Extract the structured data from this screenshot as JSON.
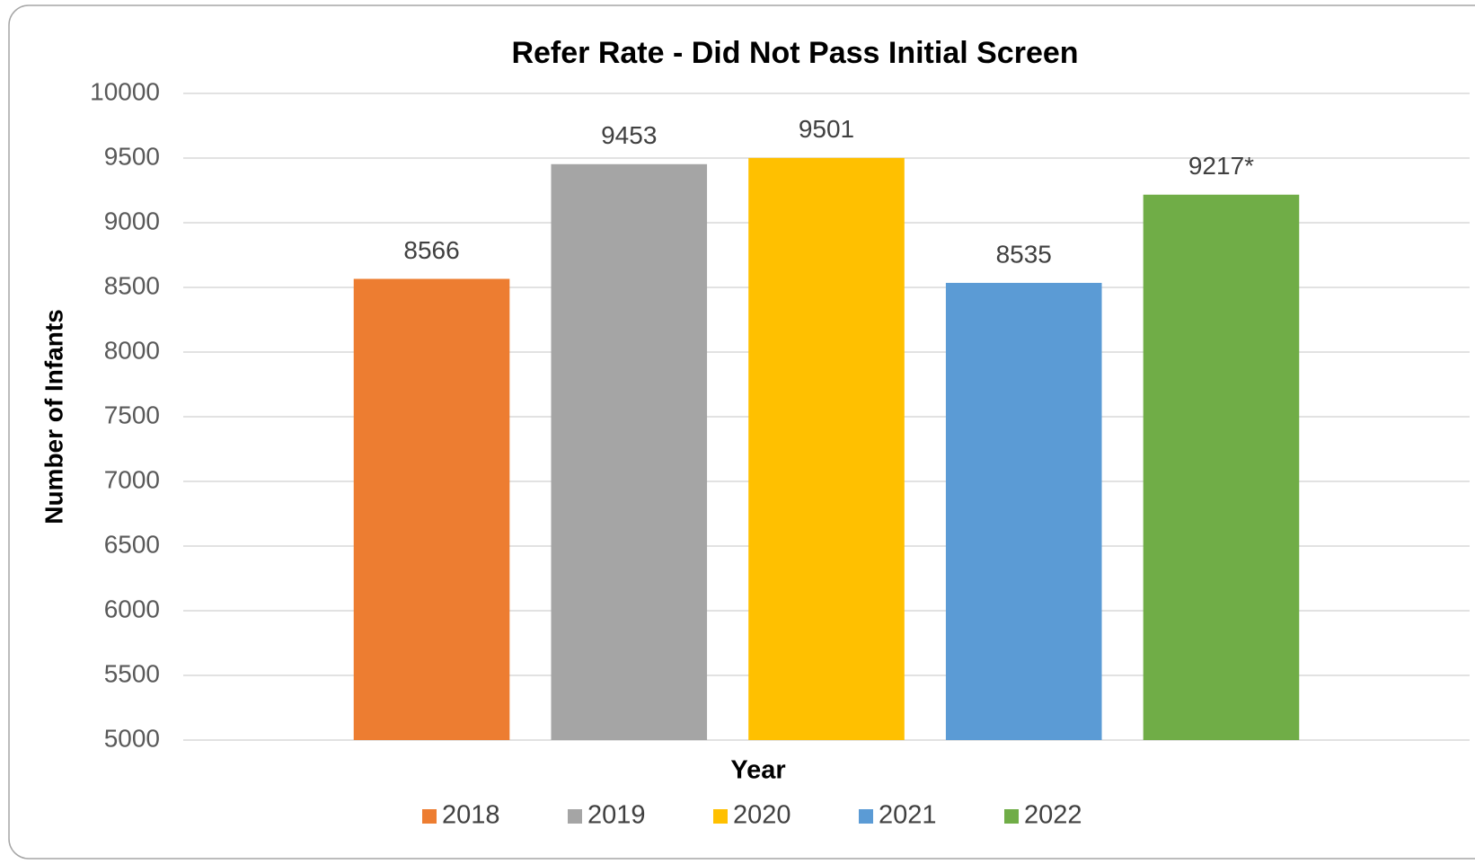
{
  "chart_data": {
    "type": "bar",
    "title": "Refer Rate - Did Not Pass Initial Screen",
    "x_label": "Year",
    "y_label": "Number of Infants",
    "series": [
      {
        "name": "2018",
        "color": "#ed7d31",
        "values": [
          8566
        ]
      },
      {
        "name": "2019",
        "color": "#a5a5a5",
        "values": [
          9453
        ]
      },
      {
        "name": "2020",
        "color": "#ffc000",
        "values": [
          9501
        ]
      },
      {
        "name": "2021",
        "color": "#5b9bd5",
        "values": [
          8535
        ]
      },
      {
        "name": "2022",
        "color": "#70ad47",
        "values": [
          9217
        ],
        "value_labels": [
          "9217*"
        ]
      }
    ],
    "ylim": [
      5000,
      10000
    ],
    "yticks": [
      5000,
      5500,
      6000,
      6500,
      7000,
      7500,
      8000,
      8500,
      9000,
      9500,
      10000
    ],
    "grid": true,
    "legend": "bottom"
  }
}
